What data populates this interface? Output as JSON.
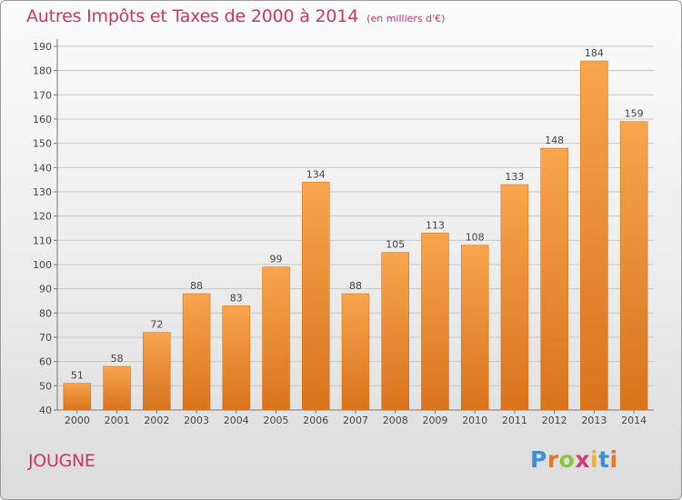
{
  "chart_data": {
    "type": "bar",
    "title": "Autres Impôts et Taxes de 2000 à 2014",
    "subtitle": "(en milliers d'€)",
    "categories": [
      "2000",
      "2001",
      "2002",
      "2003",
      "2004",
      "2005",
      "2006",
      "2007",
      "2008",
      "2009",
      "2010",
      "2011",
      "2012",
      "2013",
      "2014"
    ],
    "values": [
      51,
      58,
      72,
      88,
      83,
      99,
      134,
      88,
      105,
      113,
      108,
      133,
      148,
      184,
      159
    ],
    "ylim": [
      40,
      190
    ],
    "yticks": [
      40,
      50,
      60,
      70,
      80,
      90,
      100,
      110,
      120,
      130,
      140,
      150,
      160,
      170,
      180,
      190
    ],
    "grid": true,
    "bar_color_top": "#f7a54e",
    "bar_color_bottom": "#d9731c"
  },
  "location": "JOUGNE",
  "logo": {
    "letters": [
      "P",
      "r",
      "o",
      "x",
      "i",
      "t",
      "i"
    ],
    "colors": [
      "#3a8fd6",
      "#e8762a",
      "#8cc63f",
      "#d63a7a",
      "#f2b21b",
      "#3a8fd6",
      "#e8762a"
    ]
  }
}
